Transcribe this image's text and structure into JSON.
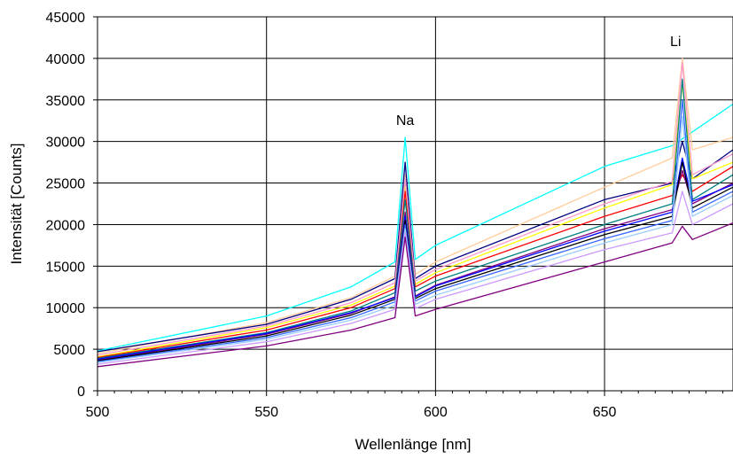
{
  "chart_data": {
    "type": "line",
    "xlabel": "Wellenlänge [nm]",
    "ylabel": "Intensität [Counts]",
    "xlim": [
      500,
      688
    ],
    "ylim": [
      0,
      45000
    ],
    "x_ticks": [
      500,
      550,
      600,
      650
    ],
    "y_ticks": [
      0,
      5000,
      10000,
      15000,
      20000,
      25000,
      30000,
      35000,
      40000,
      45000
    ],
    "grid": true,
    "legend": "none",
    "annotations": [
      {
        "text": "Na",
        "x": 591,
        "y": 32000
      },
      {
        "text": "Li",
        "x": 671,
        "y": 41500
      }
    ],
    "series": [
      {
        "color": "#00ffff",
        "x": [
          500,
          550,
          575,
          588,
          591,
          594,
          600,
          650,
          670,
          688
        ],
        "y": [
          4800,
          9000,
          12500,
          15500,
          30500,
          15800,
          17500,
          27000,
          29500,
          34500
        ]
      },
      {
        "color": "#ffcc99",
        "x": [
          500,
          550,
          575,
          588,
          591,
          594,
          600,
          650,
          670,
          673,
          676,
          688
        ],
        "y": [
          4500,
          8200,
          11200,
          13800,
          26000,
          14000,
          15500,
          24500,
          28000,
          40000,
          29000,
          30500
        ]
      },
      {
        "color": "#000080",
        "x": [
          500,
          550,
          575,
          588,
          591,
          594,
          600,
          650,
          670,
          673,
          676,
          688
        ],
        "y": [
          4700,
          8000,
          11000,
          13500,
          27500,
          13500,
          15000,
          23000,
          25000,
          30000,
          25500,
          29000
        ]
      },
      {
        "color": "#ffff00",
        "x": [
          500,
          550,
          575,
          588,
          591,
          594,
          600,
          650,
          670,
          673,
          676,
          688
        ],
        "y": [
          4100,
          7600,
          10300,
          12600,
          25000,
          12800,
          14200,
          22000,
          24800,
          37000,
          25500,
          27500
        ]
      },
      {
        "color": "#ff0000",
        "x": [
          500,
          550,
          575,
          588,
          591,
          594,
          600,
          650,
          670,
          673,
          676,
          688
        ],
        "y": [
          4000,
          7300,
          10000,
          12300,
          24000,
          12500,
          13800,
          21000,
          23500,
          26000,
          24000,
          27000
        ]
      },
      {
        "color": "#ff99cc",
        "x": [
          500,
          550,
          575,
          588,
          591,
          594,
          600,
          650,
          670,
          673,
          676,
          688
        ],
        "y": [
          4300,
          7800,
          10600,
          13000,
          25500,
          13200,
          14600,
          22500,
          25200,
          39500,
          26000,
          28500
        ]
      },
      {
        "color": "#008080",
        "x": [
          500,
          550,
          575,
          588,
          591,
          594,
          600,
          650,
          670,
          673,
          676,
          688
        ],
        "y": [
          3900,
          7000,
          9600,
          11800,
          23000,
          12000,
          13200,
          20000,
          22500,
          37500,
          23000,
          26000
        ]
      },
      {
        "color": "#800080",
        "x": [
          500,
          550,
          575,
          588,
          591,
          594,
          600,
          650,
          670,
          673,
          676,
          688
        ],
        "y": [
          3700,
          6800,
          9300,
          11300,
          21500,
          11400,
          12700,
          19500,
          21800,
          26500,
          22500,
          25000
        ]
      },
      {
        "color": "#0000ff",
        "x": [
          500,
          550,
          575,
          588,
          591,
          594,
          600,
          650,
          670,
          673,
          676,
          688
        ],
        "y": [
          3800,
          6900,
          9400,
          11200,
          21000,
          11300,
          12600,
          19200,
          21500,
          28000,
          22800,
          24800
        ]
      },
      {
        "color": "#000000",
        "x": [
          500,
          550,
          575,
          588,
          591,
          594,
          600,
          650,
          670,
          673,
          676,
          688
        ],
        "y": [
          3600,
          6600,
          9100,
          11000,
          20500,
          11100,
          12300,
          18800,
          21000,
          27500,
          22000,
          24500
        ]
      },
      {
        "color": "#3366ff",
        "x": [
          500,
          550,
          575,
          588,
          591,
          594,
          600,
          650,
          670,
          673,
          676,
          688
        ],
        "y": [
          3500,
          6400,
          8800,
          10700,
          20000,
          10800,
          12000,
          18300,
          20500,
          35000,
          21500,
          24000
        ]
      },
      {
        "color": "#99ccff",
        "x": [
          500,
          550,
          575,
          588,
          591,
          594,
          600,
          650,
          670,
          673,
          676,
          688
        ],
        "y": [
          3400,
          6200,
          8500,
          10300,
          19500,
          10400,
          11500,
          17800,
          20000,
          33000,
          21000,
          23500
        ]
      },
      {
        "color": "#cc99ff",
        "x": [
          500,
          550,
          575,
          588,
          591,
          594,
          600,
          650,
          670,
          673,
          676,
          688
        ],
        "y": [
          3200,
          5900,
          8100,
          9800,
          19000,
          9900,
          11000,
          17000,
          19000,
          24000,
          20000,
          22500
        ]
      },
      {
        "color": "#800080",
        "x": [
          500,
          550,
          575,
          588,
          591,
          594,
          600,
          650,
          670,
          673,
          676,
          688
        ],
        "y": [
          2900,
          5400,
          7300,
          8800,
          18500,
          9000,
          9800,
          15500,
          17800,
          19800,
          18200,
          20200
        ]
      }
    ]
  }
}
